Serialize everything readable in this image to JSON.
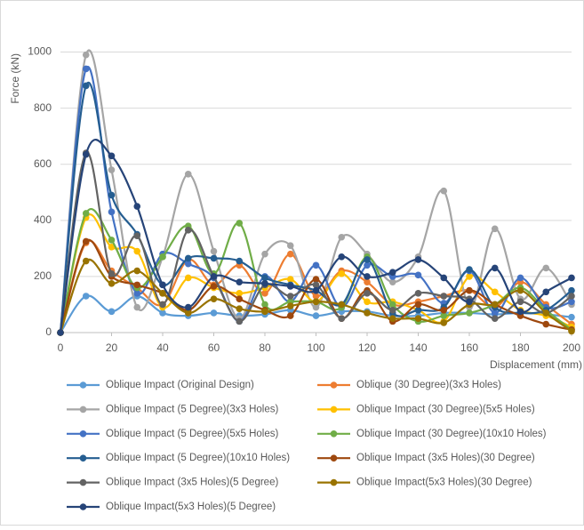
{
  "chart_data": {
    "type": "line",
    "x_label": "Displacement (mm)",
    "y_label": "Force (kN)",
    "x": [
      0,
      10,
      20,
      30,
      40,
      50,
      60,
      70,
      80,
      90,
      100,
      110,
      120,
      130,
      140,
      150,
      160,
      170,
      180,
      190,
      200
    ],
    "xlim": [
      0,
      200
    ],
    "xticks": [
      0,
      20,
      40,
      60,
      80,
      100,
      120,
      140,
      160,
      180,
      200
    ],
    "ylim": [
      0,
      1100
    ],
    "yticks": [
      0,
      200,
      400,
      600,
      800,
      1000
    ],
    "grid": true,
    "legend": "bottom",
    "series": [
      {
        "name": "Oblique Impact (Original Design)",
        "color": "#5b9bd5",
        "values": [
          0,
          130,
          75,
          130,
          70,
          60,
          70,
          60,
          65,
          80,
          60,
          75,
          75,
          60,
          60,
          70,
          70,
          65,
          70,
          65,
          55
        ]
      },
      {
        "name": "Oblique (30 Degree)(3x3 Holes)",
        "color": "#ed7d31",
        "values": [
          0,
          320,
          220,
          160,
          100,
          260,
          170,
          240,
          140,
          280,
          130,
          220,
          180,
          100,
          110,
          130,
          150,
          90,
          180,
          100,
          30
        ]
      },
      {
        "name": "Oblique Impact (5 Degree)(3x3 Holes)",
        "color": "#a5a5a5",
        "values": [
          0,
          990,
          580,
          90,
          270,
          565,
          290,
          50,
          280,
          310,
          90,
          340,
          280,
          180,
          270,
          505,
          90,
          370,
          120,
          230,
          100
        ]
      },
      {
        "name": "Oblique Impact (30 Degree)(5x5 Holes)",
        "color": "#ffc000",
        "values": [
          0,
          410,
          305,
          290,
          90,
          195,
          160,
          140,
          160,
          190,
          110,
          210,
          110,
          110,
          80,
          40,
          200,
          145,
          80,
          60,
          20
        ]
      },
      {
        "name": "Oblique Impact (5 Degree)(5x5 Holes)",
        "color": "#4472c4",
        "values": [
          0,
          940,
          430,
          140,
          280,
          245,
          195,
          40,
          200,
          110,
          240,
          90,
          240,
          200,
          205,
          105,
          220,
          70,
          195,
          90,
          110
        ]
      },
      {
        "name": "Oblique Impact (30 Degree)(10x10 Holes)",
        "color": "#70ad47",
        "values": [
          0,
          425,
          330,
          160,
          270,
          380,
          210,
          390,
          100,
          110,
          110,
          90,
          270,
          100,
          40,
          60,
          70,
          100,
          160,
          80,
          10
        ]
      },
      {
        "name": "Oblique Impact (5 Degree)(10x10 Holes)",
        "color": "#255e91",
        "values": [
          0,
          880,
          490,
          350,
          170,
          265,
          265,
          255,
          195,
          170,
          150,
          100,
          260,
          70,
          80,
          90,
          225,
          90,
          70,
          80,
          150
        ]
      },
      {
        "name": "Oblique Impact (3x5 Holes)(30 Degree)",
        "color": "#9e480e",
        "values": [
          0,
          325,
          200,
          170,
          140,
          80,
          165,
          120,
          80,
          60,
          190,
          50,
          150,
          40,
          100,
          80,
          150,
          100,
          60,
          30,
          10
        ]
      },
      {
        "name": "Oblique Impact (3x5 Holes)(5 Degree)",
        "color": "#636363",
        "values": [
          0,
          640,
          210,
          345,
          100,
          365,
          200,
          40,
          170,
          130,
          170,
          50,
          140,
          80,
          140,
          130,
          120,
          50,
          110,
          70,
          130
        ]
      },
      {
        "name": "Oblique Impact(5x3 Holes)(30 Degree)",
        "color": "#997300",
        "values": [
          0,
          255,
          175,
          220,
          140,
          70,
          120,
          85,
          75,
          95,
          110,
          100,
          70,
          50,
          50,
          35,
          100,
          100,
          150,
          70,
          5
        ]
      },
      {
        "name": "Oblique Impact(5x3 Holes)(5 Degree)",
        "color": "#264478",
        "values": [
          0,
          635,
          630,
          450,
          170,
          90,
          200,
          180,
          175,
          165,
          150,
          270,
          200,
          215,
          260,
          195,
          110,
          230,
          75,
          145,
          195
        ]
      }
    ]
  }
}
